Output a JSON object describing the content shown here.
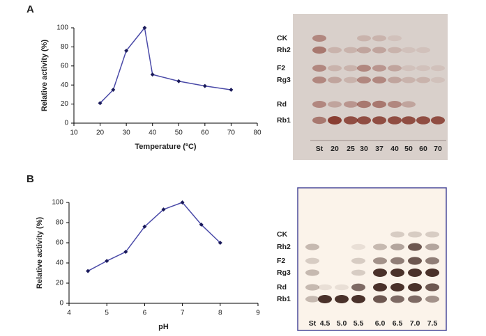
{
  "chart_data": [
    {
      "type": "line",
      "panel": "A",
      "x_label": "Temperature (ºC)",
      "y_label": "Relative activity (%)",
      "x": [
        20,
        25,
        30,
        37,
        40,
        50,
        60,
        70
      ],
      "series": [
        {
          "name": "Relative activity",
          "color": "#4a4aa8",
          "values": [
            21,
            35,
            76,
            100,
            51,
            44,
            39,
            35
          ]
        }
      ],
      "xlim": [
        10,
        80
      ],
      "xticks": [
        10,
        20,
        30,
        40,
        50,
        60,
        70,
        80
      ],
      "ylim": [
        0,
        100
      ],
      "yticks": [
        0,
        20,
        40,
        60,
        80,
        100
      ],
      "grid": false
    },
    {
      "type": "line",
      "panel": "B",
      "x_label": "pH",
      "y_label": "Relative activity (%)",
      "x": [
        4.5,
        5,
        5.5,
        6,
        6.5,
        7,
        7.5,
        8
      ],
      "series": [
        {
          "name": "Relative activity",
          "color": "#4a4aa8",
          "values": [
            32,
            42,
            51,
            76,
            93,
            100,
            78,
            60
          ]
        }
      ],
      "xlim": [
        4,
        9
      ],
      "xticks": [
        4,
        5,
        6,
        7,
        8,
        9
      ],
      "ylim": [
        0,
        100
      ],
      "yticks": [
        0,
        20,
        40,
        60,
        80,
        100
      ],
      "grid": false
    }
  ],
  "tlc": [
    {
      "compounds": [
        "CK",
        "Rh2",
        "F2",
        "Rg3",
        "Rd",
        "Rb1"
      ],
      "lanes": [
        "St",
        "20",
        "25",
        "30",
        "37",
        "40",
        "50",
        "60",
        "70"
      ]
    },
    {
      "compounds": [
        "CK",
        "Rh2",
        "F2",
        "Rg3",
        "Rd",
        "Rb1"
      ],
      "lanes": [
        "St",
        "4.5",
        "5.0",
        "5.5",
        "6.0",
        "6.5",
        "7.0",
        "7.5"
      ]
    }
  ]
}
